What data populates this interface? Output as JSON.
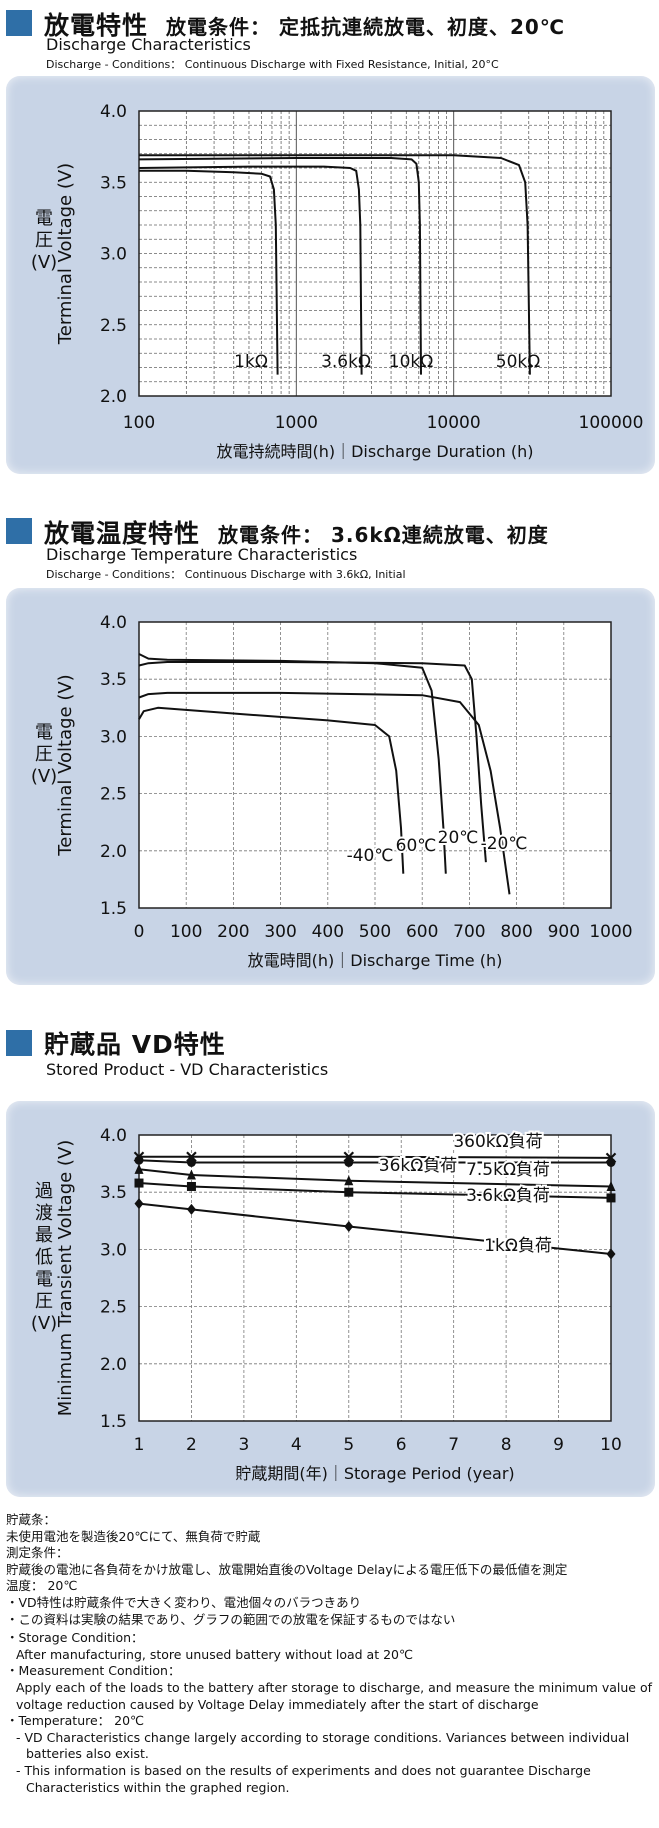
{
  "sections": [
    {
      "title_jp": "放電特性",
      "cond_jp": "放電条件： 定抵抗連続放電、初度、20℃",
      "title_en": "Discharge Characteristics",
      "cond_en": "Discharge - Conditions： Continuous Discharge with Fixed Resistance, Initial, 20°C"
    },
    {
      "title_jp": "放電温度特性",
      "cond_jp": "放電条件： 3.6kΩ連続放電、初度",
      "title_en": "Discharge Temperature Characteristics",
      "cond_en": "Discharge - Conditions： Continuous Discharge with 3.6kΩ, Initial"
    },
    {
      "title_jp": "貯蔵品 VD特性",
      "cond_jp": "",
      "title_en": "Stored Product - VD Characteristics",
      "cond_en": ""
    }
  ],
  "chart_data": [
    {
      "type": "line",
      "xscale": "log",
      "xlim": [
        100,
        100000
      ],
      "ylim": [
        2.0,
        4.0
      ],
      "xticks": [
        "100",
        "1000",
        "10000",
        "100000"
      ],
      "yticks": [
        "2.0",
        "2.5",
        "3.0",
        "3.5",
        "4.0"
      ],
      "ylabel_jp": [
        "電",
        "圧",
        "(V)"
      ],
      "ylabel": "Terminal Voltage (V)",
      "xlabel": "放電持続時間(h)｜Discharge Duration (h)",
      "series": [
        {
          "name": "1kΩ",
          "x": [
            100,
            200,
            400,
            600,
            680,
            720,
            740,
            760
          ],
          "y": [
            3.58,
            3.58,
            3.57,
            3.56,
            3.54,
            3.45,
            3.2,
            2.15
          ]
        },
        {
          "name": "3.6kΩ",
          "x": [
            100,
            500,
            1500,
            2200,
            2400,
            2500,
            2550,
            2600
          ],
          "y": [
            3.6,
            3.61,
            3.61,
            3.6,
            3.58,
            3.45,
            3.2,
            2.15
          ]
        },
        {
          "name": "10kΩ",
          "x": [
            100,
            1000,
            4000,
            5400,
            5800,
            6000,
            6100,
            6200
          ],
          "y": [
            3.66,
            3.67,
            3.67,
            3.66,
            3.63,
            3.5,
            3.2,
            2.15
          ]
        },
        {
          "name": "50kΩ",
          "x": [
            100,
            1000,
            10000,
            20000,
            26000,
            28500,
            29500,
            30500
          ],
          "y": [
            3.69,
            3.69,
            3.69,
            3.67,
            3.62,
            3.5,
            3.2,
            2.15
          ]
        }
      ]
    },
    {
      "type": "line",
      "xlim": [
        0,
        1000
      ],
      "ylim": [
        1.5,
        4.0
      ],
      "xticks": [
        "0",
        "100",
        "200",
        "300",
        "400",
        "500",
        "600",
        "700",
        "800",
        "900",
        "1000"
      ],
      "yticks": [
        "1.5",
        "2.0",
        "2.5",
        "3.0",
        "3.5",
        "4.0"
      ],
      "ylabel_jp": [
        "電",
        "圧",
        "(V)"
      ],
      "ylabel": "Terminal Voltage (V)",
      "xlabel": "放電時間(h)｜Discharge Time (h)",
      "series": [
        {
          "name": "-40℃",
          "x": [
            0,
            10,
            40,
            200,
            400,
            500,
            530,
            545,
            555,
            560
          ],
          "y": [
            3.15,
            3.22,
            3.25,
            3.2,
            3.14,
            3.1,
            3.0,
            2.7,
            2.2,
            1.8
          ]
        },
        {
          "name": "60℃",
          "x": [
            0,
            20,
            60,
            300,
            500,
            600,
            620,
            635,
            645,
            650
          ],
          "y": [
            3.72,
            3.68,
            3.67,
            3.66,
            3.64,
            3.6,
            3.4,
            2.8,
            2.2,
            1.8
          ]
        },
        {
          "name": "20℃",
          "x": [
            0,
            20,
            60,
            300,
            600,
            690,
            705,
            715,
            725,
            735
          ],
          "y": [
            3.62,
            3.64,
            3.65,
            3.65,
            3.64,
            3.62,
            3.5,
            3.0,
            2.4,
            1.9
          ]
        },
        {
          "name": "-20℃",
          "x": [
            0,
            20,
            60,
            300,
            600,
            680,
            720,
            745,
            765,
            785
          ],
          "y": [
            3.34,
            3.37,
            3.38,
            3.38,
            3.36,
            3.3,
            3.1,
            2.7,
            2.2,
            1.62
          ]
        }
      ]
    },
    {
      "type": "line",
      "xlim": [
        1,
        10
      ],
      "ylim": [
        1.5,
        4.0
      ],
      "xticks": [
        "1",
        "2",
        "3",
        "4",
        "5",
        "6",
        "7",
        "8",
        "9",
        "10"
      ],
      "yticks": [
        "1.5",
        "2.0",
        "2.5",
        "3.0",
        "3.5",
        "4.0"
      ],
      "ylabel_jp": [
        "過",
        "渡",
        "最",
        "低",
        "電",
        "圧",
        "(V)"
      ],
      "ylabel": "Minimum Transient Voltage (V)",
      "xlabel": "貯蔵期間(年)｜Storage Period (year)",
      "series": [
        {
          "name": "360kΩ負荷",
          "marker": "x",
          "x": [
            1,
            2,
            5,
            10
          ],
          "y": [
            3.81,
            3.81,
            3.81,
            3.8
          ]
        },
        {
          "name": "36kΩ負荷",
          "marker": "circle",
          "x": [
            1,
            2,
            5,
            10
          ],
          "y": [
            3.78,
            3.76,
            3.76,
            3.76
          ]
        },
        {
          "name": "7.5kΩ負荷",
          "marker": "triangle",
          "x": [
            1,
            2,
            5,
            10
          ],
          "y": [
            3.7,
            3.65,
            3.6,
            3.55
          ]
        },
        {
          "name": "3.6kΩ負荷",
          "marker": "square",
          "x": [
            1,
            2,
            5,
            10
          ],
          "y": [
            3.58,
            3.55,
            3.5,
            3.45
          ]
        },
        {
          "name": "1kΩ負荷",
          "marker": "diamond",
          "x": [
            1,
            2,
            5,
            10
          ],
          "y": [
            3.4,
            3.35,
            3.2,
            2.96
          ]
        }
      ]
    }
  ],
  "notes": [
    "貯蔵条：",
    "未使用電池を製造後20℃にて、無負荷で貯蔵",
    "測定条件：",
    "貯蔵後の電池に各負荷をかけ放電し、放電開始直後のVoltage Delayによる電圧低下の最低値を測定",
    "温度： 20℃",
    "・VD特性は貯蔵条件で大きく変わり、電池個々のバラつきあり",
    "・この資料は実験の結果であり、グラフの範囲での放電を保証するものではない",
    "・Storage Condition：",
    "After manufacturing, store unused battery without load at 20℃",
    "・Measurement Condition：",
    "Apply each of the loads to the battery after storage to discharge, and measure the minimum value of",
    "voltage reduction caused by Voltage Delay immediately after the start of discharge",
    "・Temperature： 20℃",
    "- VD Characteristics change largely according to storage conditions. Variances between individual",
    "batteries also exist.",
    "- This information is based on the results of experiments and does not guarantee Discharge",
    "Characteristics within the graphed region."
  ]
}
